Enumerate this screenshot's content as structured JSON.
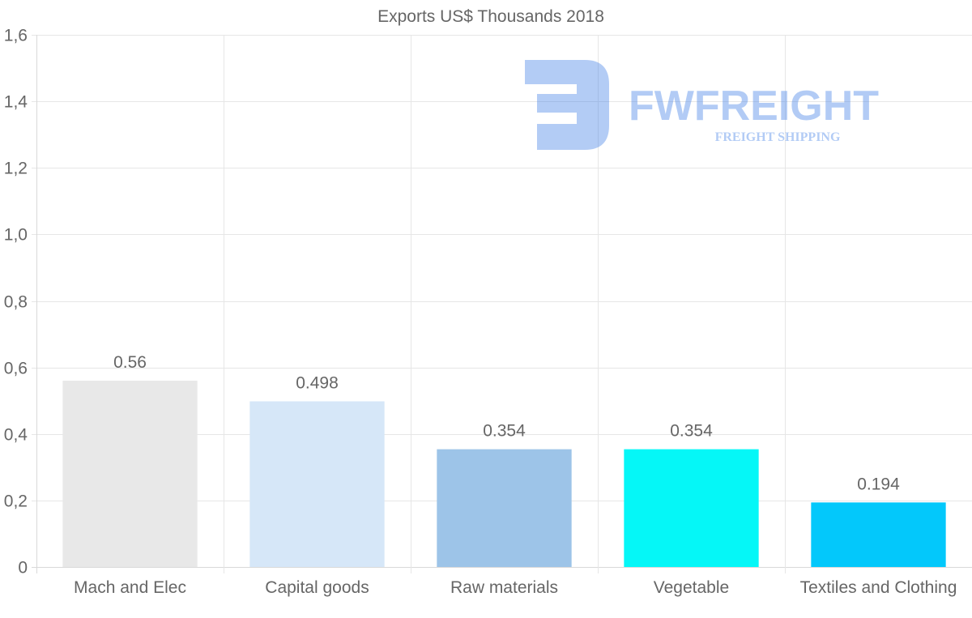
{
  "chart_data": {
    "type": "bar",
    "title": "Exports US$ Thousands 2018",
    "xlabel": "",
    "ylabel": "",
    "ylim": [
      0,
      1.6
    ],
    "yticks": [
      {
        "value": 0,
        "label": "0"
      },
      {
        "value": 0.2,
        "label": "0,2"
      },
      {
        "value": 0.4,
        "label": "0,4"
      },
      {
        "value": 0.6,
        "label": "0,6"
      },
      {
        "value": 0.8,
        "label": "0,8"
      },
      {
        "value": 1.0,
        "label": "1,0"
      },
      {
        "value": 1.2,
        "label": "1,2"
      },
      {
        "value": 1.4,
        "label": "1,4"
      },
      {
        "value": 1.6,
        "label": "1,6"
      }
    ],
    "categories": [
      "Mach and Elec",
      "Capital goods",
      "Raw materials",
      "Vegetable",
      "Textiles and Clothing"
    ],
    "values": [
      0.56,
      0.498,
      0.354,
      0.354,
      0.194
    ],
    "value_labels": [
      "0.56",
      "0.498",
      "0.354",
      "0.354",
      "0.194"
    ],
    "colors": [
      "#e8e8e8",
      "#d6e7f8",
      "#9dc4e8",
      "#05f7f7",
      "#03c8fb"
    ],
    "grid": true,
    "legend": "none"
  },
  "watermark": {
    "brand": "FWFREIGHT",
    "tagline": "FREIGHT SHIPPING",
    "color": "#4a86e8"
  }
}
